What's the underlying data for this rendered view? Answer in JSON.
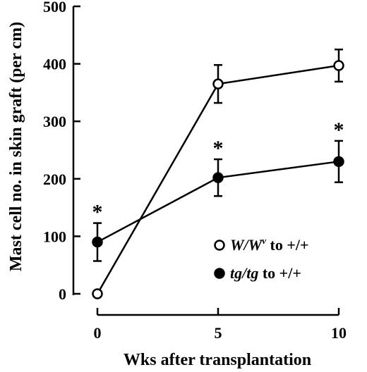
{
  "chart_data": {
    "type": "line",
    "xlabel": "Wks after transplantation",
    "ylabel": "Mast cell no. in skin graft (per cm)",
    "x": [
      0,
      5,
      10
    ],
    "x_tick_labels": [
      "0",
      "5",
      "10"
    ],
    "ylim": [
      0,
      500
    ],
    "y_ticks": [
      0,
      100,
      200,
      300,
      400,
      500
    ],
    "y_tick_labels": [
      "0",
      "100",
      "200",
      "300",
      "400",
      "500"
    ],
    "grid": false,
    "legend_position": "bottom-right",
    "series": [
      {
        "name_prefix": "W/W",
        "name_superscript": "v",
        "name_suffix": " to +/+",
        "marker": "open-circle",
        "color": "#000000",
        "values": [
          0,
          365,
          397
        ],
        "error": [
          0,
          33,
          28
        ]
      },
      {
        "name_prefix": "tg/tg",
        "name_superscript": "",
        "name_suffix": " to +/+",
        "marker": "filled-circle",
        "color": "#000000",
        "values": [
          90,
          202,
          230
        ],
        "error": [
          33,
          32,
          36
        ]
      }
    ],
    "annotations": [
      {
        "text": "*",
        "x": 0,
        "y": 123
      },
      {
        "text": "*",
        "x": 5,
        "y": 234
      },
      {
        "text": "*",
        "x": 10,
        "y": 266
      }
    ]
  }
}
